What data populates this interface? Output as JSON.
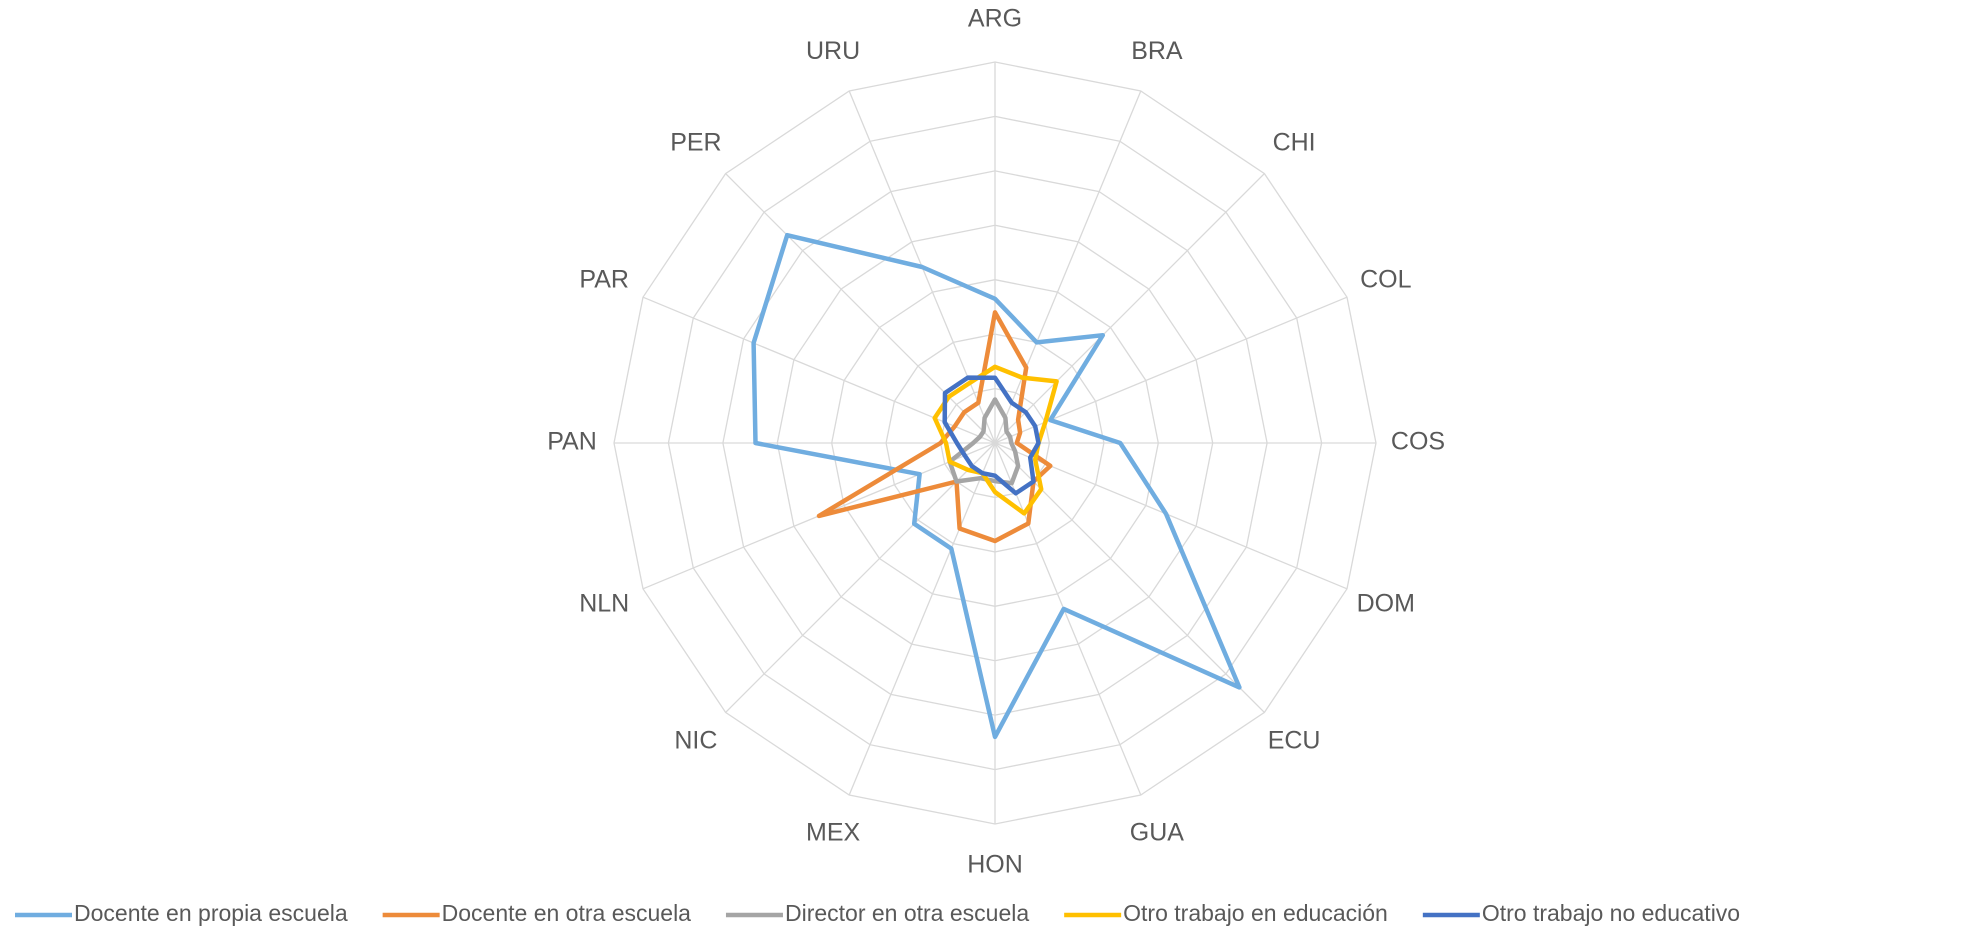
{
  "chart_data": {
    "type": "radar",
    "categories": [
      "ARG",
      "BRA",
      "CHI",
      "COL",
      "COS",
      "DOM",
      "ECU",
      "GUA",
      "HON",
      "MEX",
      "NIC",
      "NLN",
      "PAN",
      "PAR",
      "PER",
      "URU"
    ],
    "rlim": [
      0,
      70
    ],
    "rticks": [
      10,
      20,
      30,
      40,
      50,
      60,
      70
    ],
    "grid": true,
    "legend": "bottom",
    "series": [
      {
        "name": "Docente en propia escuela",
        "color": "#70ade0",
        "values": [
          26.5,
          20,
          28,
          11,
          23,
          34,
          63.5,
          33,
          54,
          21,
          21,
          15,
          44,
          48,
          54,
          35
        ]
      },
      {
        "name": "Docente en otra escuela",
        "color": "#ed8b3a",
        "values": [
          24,
          15,
          6,
          5,
          4,
          11,
          10,
          16,
          18,
          17,
          10,
          35,
          10,
          8,
          8,
          8
        ]
      },
      {
        "name": "Director en otra escuela",
        "color": "#a5a5a5",
        "values": [
          8,
          5,
          3,
          3,
          3,
          4,
          6,
          8,
          7,
          7,
          10,
          9,
          4,
          3,
          3,
          5
        ]
      },
      {
        "name": "Otro trabajo en educación",
        "color": "#ffc000",
        "values": [
          14,
          13,
          16,
          10,
          8,
          8,
          12,
          14,
          9,
          6,
          7,
          9,
          9,
          12,
          12,
          12
        ]
      },
      {
        "name": "Otro trabajo no educativo",
        "color": "#4472c4",
        "values": [
          12,
          8,
          8,
          8,
          8,
          7,
          10,
          10,
          6,
          6,
          6,
          6,
          7,
          10,
          13,
          13
        ]
      }
    ]
  }
}
